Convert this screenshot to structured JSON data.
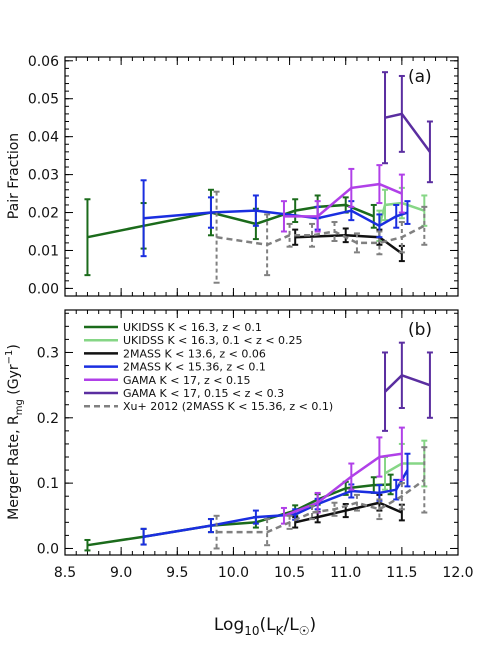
{
  "colors": {
    "ukidss_a": "#1b6b1b",
    "ukidss_b": "#86d686",
    "twomass_a": "#111111",
    "twomass_b": "#1a2ee0",
    "gama_a": "#b040e8",
    "gama_b": "#5a2ea0",
    "xu": "#808080"
  },
  "chart_data": [
    {
      "type": "line",
      "panel_label": "(a)",
      "ylabel": "Pair Fraction",
      "xlim": [
        8.5,
        12.0
      ],
      "ylim": [
        -0.002,
        0.061
      ],
      "yticks": [
        "0.00",
        "0.01",
        "0.02",
        "0.03",
        "0.04",
        "0.05",
        "0.06"
      ],
      "grid": false,
      "series": [
        {
          "name": "UKIDSS K < 16.3, z < 0.1",
          "color_key": "ukidss_a",
          "dash": false,
          "x": [
            8.7,
            9.2,
            9.8,
            10.2,
            10.55,
            10.75,
            11.0,
            11.25
          ],
          "y": [
            0.0135,
            0.0165,
            0.02,
            0.017,
            0.0205,
            0.0215,
            0.022,
            0.019
          ],
          "err": [
            0.01,
            0.006,
            0.006,
            0.004,
            0.003,
            0.003,
            0.002,
            0.003
          ]
        },
        {
          "name": "UKIDSS K < 16.3, 0.1 < z < 0.25",
          "color_key": "ukidss_b",
          "dash": false,
          "x": [
            11.3,
            11.35,
            11.5,
            11.7
          ],
          "y": [
            0.0165,
            0.022,
            0.0225,
            0.0205
          ],
          "err": [
            0.004,
            0.004,
            0.004,
            0.004
          ]
        },
        {
          "name": "2MASS K < 13.6, z < 0.06",
          "color_key": "twomass_a",
          "dash": false,
          "x": [
            10.55,
            11.0,
            11.3,
            11.5
          ],
          "y": [
            0.0135,
            0.014,
            0.0135,
            0.0092
          ],
          "err": [
            0.002,
            0.0018,
            0.002,
            0.002
          ]
        },
        {
          "name": "2MASS K < 15.36, z < 0.1",
          "color_key": "twomass_b",
          "dash": false,
          "x": [
            9.2,
            9.8,
            10.2,
            10.75,
            11.05,
            11.3,
            11.45,
            11.55
          ],
          "y": [
            0.0185,
            0.02,
            0.0205,
            0.0185,
            0.0205,
            0.0165,
            0.019,
            0.02
          ],
          "err": [
            0.01,
            0.004,
            0.004,
            0.003,
            0.0025,
            0.003,
            0.003,
            0.003
          ]
        },
        {
          "name": "GAMA K < 17, z < 0.15",
          "color_key": "gama_a",
          "dash": false,
          "x": [
            10.45,
            10.75,
            11.05,
            11.3,
            11.5
          ],
          "y": [
            0.019,
            0.019,
            0.0265,
            0.0275,
            0.025
          ],
          "err": [
            0.004,
            0.004,
            0.005,
            0.005,
            0.005
          ]
        },
        {
          "name": "GAMA K < 17, 0.15 < z < 0.3",
          "color_key": "gama_b",
          "dash": false,
          "x": [
            11.35,
            11.5,
            11.75
          ],
          "y": [
            0.045,
            0.046,
            0.036
          ],
          "err": [
            0.012,
            0.01,
            0.008
          ]
        },
        {
          "name": "Xu+ 2012 (2MASS K < 15.36, z < 0.1)",
          "color_key": "xu",
          "dash": true,
          "x": [
            9.85,
            10.3,
            10.5,
            10.7,
            10.9,
            11.1,
            11.3,
            11.5,
            11.7
          ],
          "y": [
            0.0135,
            0.0115,
            0.014,
            0.014,
            0.015,
            0.012,
            0.012,
            0.0135,
            0.0165
          ],
          "err": [
            0.012,
            0.008,
            0.003,
            0.003,
            0.0025,
            0.0025,
            0.003,
            0.004,
            0.005
          ]
        }
      ]
    },
    {
      "type": "line",
      "panel_label": "(b)",
      "ylabel": "Merger Rate, R_mg (Gyr^-1)",
      "xlabel": "Log10(LK/L☉)",
      "xlim": [
        8.5,
        12.0
      ],
      "ylim": [
        -0.01,
        0.365
      ],
      "yticks": [
        "0.0",
        "0.1",
        "0.2",
        "0.3"
      ],
      "xticks": [
        "8.5",
        "9.0",
        "9.5",
        "10.0",
        "10.5",
        "11.0",
        "11.5",
        "12.0"
      ],
      "grid": false,
      "legend_position": "top-left",
      "series": [
        {
          "name": "UKIDSS K < 16.3, z < 0.1",
          "color_key": "ukidss_a",
          "dash": false,
          "x": [
            8.7,
            9.2,
            9.8,
            10.2,
            10.55,
            10.75,
            11.0,
            11.25,
            11.4
          ],
          "y": [
            0.005,
            0.018,
            0.035,
            0.04,
            0.058,
            0.075,
            0.092,
            0.097,
            0.098
          ],
          "err": [
            0.008,
            0.012,
            0.01,
            0.008,
            0.008,
            0.008,
            0.01,
            0.012,
            0.015
          ]
        },
        {
          "name": "UKIDSS K < 16.3, 0.1 < z < 0.25",
          "color_key": "ukidss_b",
          "dash": false,
          "x": [
            11.35,
            11.5,
            11.7
          ],
          "y": [
            0.115,
            0.13,
            0.13
          ],
          "err": [
            0.025,
            0.03,
            0.035
          ]
        },
        {
          "name": "2MASS K < 13.6, z < 0.06",
          "color_key": "twomass_a",
          "dash": false,
          "x": [
            10.55,
            10.75,
            11.0,
            11.3,
            11.5
          ],
          "y": [
            0.04,
            0.048,
            0.058,
            0.07,
            0.055
          ],
          "err": [
            0.008,
            0.008,
            0.01,
            0.012,
            0.012
          ]
        },
        {
          "name": "2MASS K < 15.36, z < 0.1",
          "color_key": "twomass_b",
          "dash": false,
          "x": [
            9.2,
            9.8,
            10.2,
            10.55,
            10.75,
            11.05,
            11.3,
            11.45,
            11.55
          ],
          "y": [
            0.018,
            0.035,
            0.048,
            0.052,
            0.068,
            0.088,
            0.085,
            0.09,
            0.12
          ],
          "err": [
            0.012,
            0.01,
            0.01,
            0.008,
            0.008,
            0.01,
            0.012,
            0.015,
            0.025
          ]
        },
        {
          "name": "GAMA K < 17, z < 0.15",
          "color_key": "gama_a",
          "dash": false,
          "x": [
            10.45,
            10.75,
            11.05,
            11.3,
            11.5
          ],
          "y": [
            0.05,
            0.07,
            0.11,
            0.14,
            0.145
          ],
          "err": [
            0.012,
            0.015,
            0.02,
            0.03,
            0.04
          ]
        },
        {
          "name": "GAMA K < 17, 0.15 < z < 0.3",
          "color_key": "gama_b",
          "dash": false,
          "x": [
            11.35,
            11.5,
            11.75
          ],
          "y": [
            0.24,
            0.265,
            0.25
          ],
          "err": [
            0.06,
            0.05,
            0.05
          ]
        },
        {
          "name": "Xu+ 2012 (2MASS K < 15.36, z < 0.1)",
          "color_key": "xu",
          "dash": true,
          "x": [
            9.85,
            10.3,
            10.5,
            10.7,
            10.9,
            11.1,
            11.3,
            11.5,
            11.7
          ],
          "y": [
            0.025,
            0.025,
            0.04,
            0.055,
            0.06,
            0.07,
            0.06,
            0.08,
            0.105
          ],
          "err": [
            0.025,
            0.02,
            0.01,
            0.01,
            0.01,
            0.012,
            0.015,
            0.02,
            0.05
          ]
        }
      ]
    }
  ]
}
